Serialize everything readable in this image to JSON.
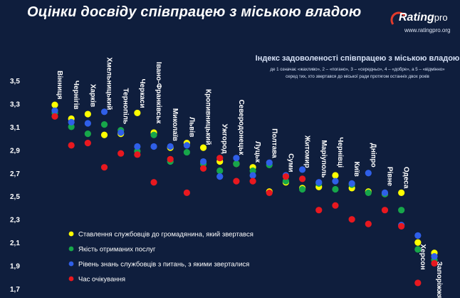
{
  "title": "Оцінки досвіду співпрацею з міською владою",
  "logo": {
    "word_main": "Rating",
    "word_pro": "pro",
    "url": "www.ratingpro.org"
  },
  "chart_data": {
    "type": "scatter",
    "subtitle": "Індекс задоволеності співпрацею з міською владою",
    "note_line1": "де 1 означає «жахливо», 2 – «погано», 3 – «середньо», 4 – «добре», а 5 – «відмінно»",
    "note_line2": "серед тих, хто звертався до міської ради протягом останніх двох років",
    "ylim": [
      1.7,
      3.5
    ],
    "yticks": [
      "3,5",
      "3,3",
      "3,1",
      "2,9",
      "2,7",
      "2,5",
      "2,3",
      "2,1",
      "1,9",
      "1,7"
    ],
    "categories": [
      "Вінниця",
      "Чернігів",
      "Харків",
      "Хмельницький",
      "Тернопіль",
      "Черкаси",
      "Івано-Франківськ",
      "Миколаїв",
      "Львів",
      "Кропивницький",
      "Ужгород",
      "Северодонецьк",
      "Луцьк",
      "Полтава",
      "Суми",
      "Житомир",
      "Маріуполь",
      "Чернівці",
      "Київ",
      "Дніпро",
      "Рівне",
      "Одеса",
      "Херсон",
      "Запоріжжя"
    ],
    "series": [
      {
        "name": "Ставлення службовців до громадянина, який звертався",
        "color": "#ffff00",
        "values": [
          3.29,
          3.17,
          3.21,
          3.03,
          3.04,
          3.22,
          3.05,
          2.92,
          2.96,
          2.92,
          2.8,
          2.78,
          2.75,
          2.54,
          2.62,
          2.57,
          2.58,
          2.68,
          2.57,
          2.54,
          2.52,
          2.53,
          2.1,
          2.01
        ]
      },
      {
        "name": "Якість отриманих послуг",
        "color": "#17a64a",
        "values": [
          3.22,
          3.1,
          3.04,
          3.12,
          3.07,
          2.89,
          3.03,
          2.8,
          2.88,
          2.78,
          2.72,
          2.78,
          2.72,
          2.77,
          2.63,
          2.56,
          2.61,
          2.56,
          2.6,
          2.53,
          2.52,
          2.38,
          2.04,
          1.95
        ]
      },
      {
        "name": "Рівень знань службовців з питань, з якими зверталися",
        "color": "#2f5fe8",
        "values": [
          3.24,
          3.14,
          3.13,
          3.23,
          3.05,
          2.93,
          2.93,
          2.93,
          2.94,
          2.8,
          2.67,
          2.83,
          2.68,
          2.79,
          2.68,
          2.73,
          2.62,
          2.63,
          2.61,
          2.7,
          2.53,
          2.25,
          2.16,
          1.98
        ]
      },
      {
        "name": "Час очікування",
        "color": "#e8181f",
        "values": [
          3.19,
          2.94,
          2.96,
          2.75,
          2.87,
          2.86,
          2.62,
          2.82,
          2.53,
          2.74,
          2.83,
          2.63,
          2.63,
          2.53,
          2.67,
          2.65,
          2.38,
          2.42,
          2.3,
          2.26,
          2.38,
          2.24,
          1.75,
          1.92
        ]
      }
    ],
    "label_under_points": [
      "Херсон",
      "Запоріжжя"
    ]
  }
}
